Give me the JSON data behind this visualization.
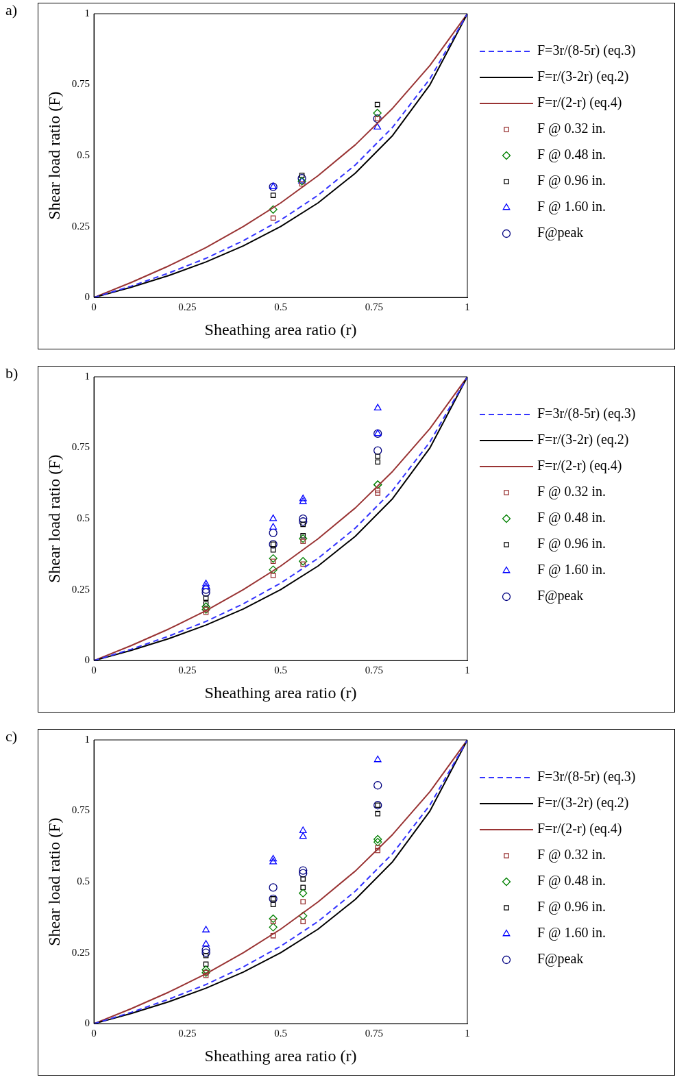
{
  "chart_data": [
    {
      "type": "scatter",
      "title": "a)",
      "xlabel": "Sheathing area ratio (r)",
      "ylabel": "Shear load ratio (F)",
      "xlim": [
        0,
        1
      ],
      "ylim": [
        0,
        1
      ],
      "xticks": [
        0,
        0.25,
        0.5,
        0.75,
        1
      ],
      "yticks": [
        0,
        0.25,
        0.5,
        0.75,
        1
      ],
      "grid": false,
      "legend": "right",
      "series": [
        {
          "name": "F=3r/(8-5r) (eq.3)",
          "type": "line",
          "line_style": "dashed",
          "marker": "none",
          "color": "#3333ff",
          "x": [
            0,
            0.1,
            0.2,
            0.3,
            0.4,
            0.5,
            0.6,
            0.7,
            0.8,
            0.9,
            1
          ],
          "values": [
            0,
            0.04,
            0.086,
            0.138,
            0.2,
            0.273,
            0.36,
            0.467,
            0.6,
            0.771,
            1
          ]
        },
        {
          "name": "F=r/(3-2r) (eq.2)",
          "type": "line",
          "line_style": "solid",
          "marker": "none",
          "color": "#000000",
          "x": [
            0,
            0.1,
            0.2,
            0.3,
            0.4,
            0.5,
            0.6,
            0.7,
            0.8,
            0.9,
            1
          ],
          "values": [
            0,
            0.036,
            0.077,
            0.125,
            0.182,
            0.25,
            0.333,
            0.438,
            0.571,
            0.75,
            1
          ]
        },
        {
          "name": "F=r/(2-r) (eq.4)",
          "type": "line",
          "line_style": "solid",
          "marker": "none",
          "color": "#993333",
          "x": [
            0,
            0.1,
            0.2,
            0.3,
            0.4,
            0.5,
            0.6,
            0.7,
            0.8,
            0.9,
            1
          ],
          "values": [
            0,
            0.053,
            0.111,
            0.176,
            0.25,
            0.333,
            0.429,
            0.538,
            0.667,
            0.818,
            1
          ]
        },
        {
          "name": "F @ 0.32 in.",
          "marker": "square",
          "color": "#993333",
          "x": [
            0.48,
            0.557,
            0.759
          ],
          "values": [
            0.28,
            0.4,
            0.63
          ]
        },
        {
          "name": "F @ 0.48 in.",
          "marker": "diamond",
          "color": "#008000",
          "x": [
            0.48,
            0.557,
            0.759
          ],
          "values": [
            0.31,
            0.41,
            0.65
          ]
        },
        {
          "name": "F @ 0.96 in.",
          "marker": "square",
          "color": "#000000",
          "x": [
            0.48,
            0.557,
            0.759
          ],
          "values": [
            0.36,
            0.43,
            0.68
          ]
        },
        {
          "name": "F @ 1.60 in.",
          "marker": "triangle",
          "color": "#0000ff",
          "x": [
            0.48,
            0.557,
            0.759
          ],
          "values": [
            0.39,
            0.41,
            0.6
          ]
        },
        {
          "name": "F@peak",
          "marker": "circle",
          "color": "#000080",
          "x": [
            0.48,
            0.557,
            0.759
          ],
          "values": [
            0.39,
            0.42,
            0.63
          ]
        }
      ]
    },
    {
      "type": "scatter",
      "title": "b)",
      "xlabel": "Sheathing area ratio (r)",
      "ylabel": "Shear load ratio (F)",
      "xlim": [
        0,
        1
      ],
      "ylim": [
        0,
        1
      ],
      "xticks": [
        0,
        0.25,
        0.5,
        0.75,
        1
      ],
      "yticks": [
        0,
        0.25,
        0.5,
        0.75,
        1
      ],
      "grid": false,
      "legend": "right",
      "series": [
        {
          "name": "F=3r/(8-5r) (eq.3)",
          "type": "line",
          "line_style": "dashed",
          "marker": "none",
          "color": "#3333ff",
          "x": [
            0,
            0.1,
            0.2,
            0.3,
            0.4,
            0.5,
            0.6,
            0.7,
            0.8,
            0.9,
            1
          ],
          "values": [
            0,
            0.04,
            0.086,
            0.138,
            0.2,
            0.273,
            0.36,
            0.467,
            0.6,
            0.771,
            1
          ]
        },
        {
          "name": "F=r/(3-2r) (eq.2)",
          "type": "line",
          "line_style": "solid",
          "marker": "none",
          "color": "#000000",
          "x": [
            0,
            0.1,
            0.2,
            0.3,
            0.4,
            0.5,
            0.6,
            0.7,
            0.8,
            0.9,
            1
          ],
          "values": [
            0,
            0.036,
            0.077,
            0.125,
            0.182,
            0.25,
            0.333,
            0.438,
            0.571,
            0.75,
            1
          ]
        },
        {
          "name": "F=r/(2-r) (eq.4)",
          "type": "line",
          "line_style": "solid",
          "marker": "none",
          "color": "#993333",
          "x": [
            0,
            0.1,
            0.2,
            0.3,
            0.4,
            0.5,
            0.6,
            0.7,
            0.8,
            0.9,
            1
          ],
          "values": [
            0,
            0.053,
            0.111,
            0.176,
            0.25,
            0.333,
            0.429,
            0.538,
            0.667,
            0.818,
            1
          ]
        },
        {
          "name": "F @ 0.32 in.",
          "marker": "square",
          "color": "#993333",
          "x": [
            0.3,
            0.3,
            0.48,
            0.48,
            0.56,
            0.56,
            0.76,
            0.76
          ],
          "values": [
            0.17,
            0.18,
            0.3,
            0.35,
            0.34,
            0.42,
            0.59,
            0.6
          ]
        },
        {
          "name": "F @ 0.48 in.",
          "marker": "diamond",
          "color": "#008000",
          "x": [
            0.3,
            0.3,
            0.48,
            0.48,
            0.56,
            0.56,
            0.76,
            0.76
          ],
          "values": [
            0.18,
            0.19,
            0.32,
            0.36,
            0.35,
            0.43,
            0.62,
            0.62
          ]
        },
        {
          "name": "F @ 0.96 in.",
          "marker": "square",
          "color": "#000000",
          "x": [
            0.3,
            0.3,
            0.48,
            0.48,
            0.56,
            0.56,
            0.76,
            0.76
          ],
          "values": [
            0.2,
            0.22,
            0.39,
            0.41,
            0.44,
            0.48,
            0.7,
            0.72
          ]
        },
        {
          "name": "F @ 1.60 in.",
          "marker": "triangle",
          "color": "#0000ff",
          "x": [
            0.3,
            0.3,
            0.48,
            0.48,
            0.56,
            0.56,
            0.76,
            0.76
          ],
          "values": [
            0.26,
            0.27,
            0.47,
            0.5,
            0.56,
            0.57,
            0.8,
            0.89
          ]
        },
        {
          "name": "F@peak",
          "marker": "circle",
          "color": "#000080",
          "x": [
            0.3,
            0.3,
            0.48,
            0.48,
            0.56,
            0.56,
            0.76,
            0.76
          ],
          "values": [
            0.24,
            0.25,
            0.41,
            0.45,
            0.49,
            0.5,
            0.74,
            0.8
          ]
        }
      ]
    },
    {
      "type": "scatter",
      "title": "c)",
      "xlabel": "Sheathing area ratio (r)",
      "ylabel": "Shear load ratio (F)",
      "xlim": [
        0,
        1
      ],
      "ylim": [
        0,
        1
      ],
      "xticks": [
        0,
        0.25,
        0.5,
        0.75,
        1
      ],
      "yticks": [
        0,
        0.25,
        0.5,
        0.75,
        1
      ],
      "grid": false,
      "legend": "right",
      "series": [
        {
          "name": "F=3r/(8-5r) (eq.3)",
          "type": "line",
          "line_style": "dashed",
          "marker": "none",
          "color": "#3333ff",
          "x": [
            0,
            0.1,
            0.2,
            0.3,
            0.4,
            0.5,
            0.6,
            0.7,
            0.8,
            0.9,
            1
          ],
          "values": [
            0,
            0.04,
            0.086,
            0.138,
            0.2,
            0.273,
            0.36,
            0.467,
            0.6,
            0.771,
            1
          ]
        },
        {
          "name": "F=r/(3-2r) (eq.2)",
          "type": "line",
          "line_style": "solid",
          "marker": "none",
          "color": "#000000",
          "x": [
            0,
            0.1,
            0.2,
            0.3,
            0.4,
            0.5,
            0.6,
            0.7,
            0.8,
            0.9,
            1
          ],
          "values": [
            0,
            0.036,
            0.077,
            0.125,
            0.182,
            0.25,
            0.333,
            0.438,
            0.571,
            0.75,
            1
          ]
        },
        {
          "name": "F=r/(2-r) (eq.4)",
          "type": "line",
          "line_style": "solid",
          "marker": "none",
          "color": "#993333",
          "x": [
            0,
            0.1,
            0.2,
            0.3,
            0.4,
            0.5,
            0.6,
            0.7,
            0.8,
            0.9,
            1
          ],
          "values": [
            0,
            0.053,
            0.111,
            0.176,
            0.25,
            0.333,
            0.429,
            0.538,
            0.667,
            0.818,
            1
          ]
        },
        {
          "name": "F @ 0.32 in.",
          "marker": "square",
          "color": "#993333",
          "x": [
            0.3,
            0.3,
            0.48,
            0.48,
            0.56,
            0.56,
            0.76,
            0.76
          ],
          "values": [
            0.17,
            0.18,
            0.31,
            0.36,
            0.36,
            0.43,
            0.61,
            0.62
          ]
        },
        {
          "name": "F @ 0.48 in.",
          "marker": "diamond",
          "color": "#008000",
          "x": [
            0.3,
            0.3,
            0.48,
            0.48,
            0.56,
            0.56,
            0.76,
            0.76
          ],
          "values": [
            0.18,
            0.19,
            0.34,
            0.37,
            0.38,
            0.46,
            0.64,
            0.65
          ]
        },
        {
          "name": "F @ 0.96 in.",
          "marker": "square",
          "color": "#000000",
          "x": [
            0.3,
            0.3,
            0.48,
            0.48,
            0.56,
            0.56,
            0.76,
            0.76
          ],
          "values": [
            0.21,
            0.24,
            0.42,
            0.44,
            0.48,
            0.51,
            0.74,
            0.77
          ]
        },
        {
          "name": "F @ 1.60 in.",
          "marker": "triangle",
          "color": "#0000ff",
          "x": [
            0.3,
            0.3,
            0.48,
            0.48,
            0.56,
            0.56,
            0.76
          ],
          "values": [
            0.28,
            0.33,
            0.57,
            0.58,
            0.66,
            0.68,
            0.93
          ]
        },
        {
          "name": "F@peak",
          "marker": "circle",
          "color": "#000080",
          "x": [
            0.3,
            0.3,
            0.48,
            0.48,
            0.56,
            0.56,
            0.76,
            0.76
          ],
          "values": [
            0.25,
            0.26,
            0.44,
            0.48,
            0.53,
            0.54,
            0.77,
            0.84
          ]
        }
      ]
    }
  ]
}
